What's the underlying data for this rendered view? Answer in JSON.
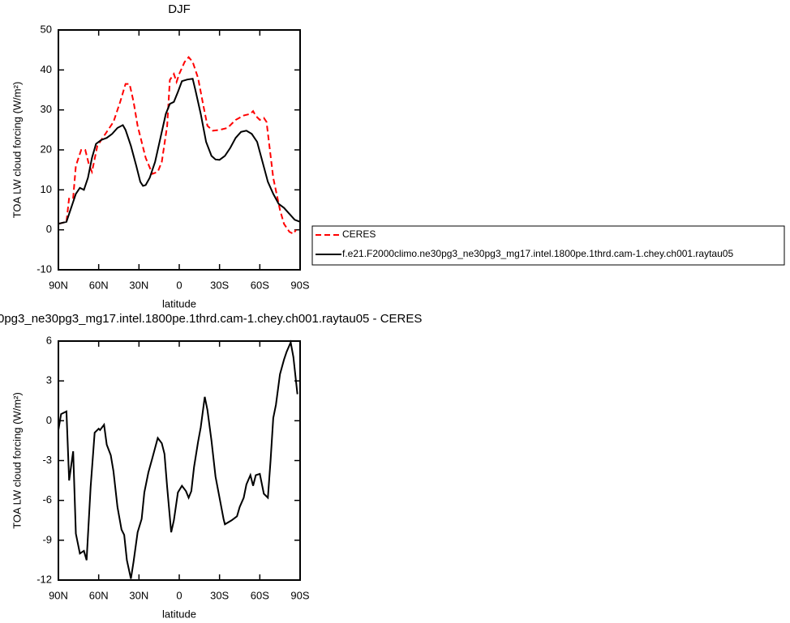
{
  "chart_data": [
    {
      "type": "line",
      "title": "DJF",
      "xlabel": "latitude",
      "ylabel": "TOA LW cloud forcing (W/m²)",
      "xlim": [
        90,
        -90
      ],
      "ylim": [
        -10,
        50
      ],
      "xticks": [
        {
          "value": 90,
          "label": "90N"
        },
        {
          "value": 60,
          "label": "60N"
        },
        {
          "value": 30,
          "label": "30N"
        },
        0,
        {
          "value": -30,
          "label": "30S"
        },
        {
          "value": -60,
          "label": "60S"
        },
        {
          "value": -90,
          "label": "90S"
        }
      ],
      "yticks": [
        -10,
        0,
        10,
        20,
        30,
        40,
        50
      ],
      "legend": "right",
      "series": [
        {
          "name": "CERES",
          "color": "#ff0000",
          "dashed": true,
          "x": [
            90,
            84,
            82,
            79,
            77,
            73,
            70,
            67,
            65,
            61,
            55,
            49,
            44,
            40,
            37,
            34,
            31,
            25,
            20,
            16,
            13,
            9,
            7,
            4,
            2,
            0,
            -4,
            -7,
            -10,
            -14,
            -18,
            -21,
            -25,
            -30,
            -36,
            -42,
            -48,
            -53,
            -55,
            -57,
            -60,
            -63,
            -65,
            -70,
            -75,
            -78,
            -82,
            -85,
            -87
          ],
          "values": [
            1.5,
            2,
            8,
            8,
            16,
            20,
            20,
            16,
            14.5,
            21,
            24,
            27,
            32,
            36.5,
            36.5,
            32,
            26,
            18,
            14,
            14.5,
            17,
            26,
            37.5,
            39,
            37,
            39,
            42,
            43.2,
            42,
            38,
            31,
            26,
            24.8,
            25,
            25.5,
            27.5,
            28.6,
            29,
            29.7,
            28.5,
            27.5,
            28,
            27,
            13,
            5,
            1.5,
            -0.5,
            -1,
            0
          ]
        },
        {
          "name": "f.e21.F2000climo.ne30pg3_ne30pg3_mg17.intel.1800pe.1thrd.cam-1.chey.ch001.raytau05",
          "color": "#000000",
          "dashed": false,
          "x": [
            90,
            84,
            81,
            77,
            74,
            71,
            68,
            65,
            62,
            58,
            54,
            50,
            46,
            42,
            40,
            36,
            32,
            29,
            27,
            25,
            22,
            18,
            14,
            10,
            7,
            4,
            1,
            -2,
            -6,
            -10,
            -12,
            -16,
            -20,
            -24,
            -27,
            -30,
            -34,
            -38,
            -42,
            -46,
            -50,
            -54,
            -58,
            -62,
            -66,
            -70,
            -74,
            -78,
            -82,
            -86,
            -90
          ],
          "values": [
            1.5,
            2,
            5,
            9,
            10.5,
            10,
            13,
            18,
            21.5,
            22.5,
            23,
            24,
            25.5,
            26.2,
            25,
            21,
            16,
            12,
            11,
            11.2,
            13,
            17,
            23,
            29,
            31.5,
            32,
            34.5,
            37.2,
            37.6,
            37.8,
            35,
            29,
            22,
            18.5,
            17.6,
            17.5,
            18.5,
            20.5,
            23,
            24.5,
            24.8,
            24,
            22,
            17,
            12,
            9,
            6.5,
            5.5,
            4,
            2.5,
            2
          ]
        }
      ]
    },
    {
      "type": "line",
      "title": "0pg3_ne30pg3_mg17.intel.1800pe.1thrd.cam-1.chey.ch001.raytau05 - CERES",
      "xlabel": "latitude",
      "ylabel": "TOA LW cloud forcing (W/m²)",
      "xlim": [
        90,
        -90
      ],
      "ylim": [
        -12,
        6
      ],
      "xticks": [
        {
          "value": 90,
          "label": "90N"
        },
        {
          "value": 60,
          "label": "60N"
        },
        {
          "value": 30,
          "label": "30N"
        },
        0,
        {
          "value": -30,
          "label": "30S"
        },
        {
          "value": -60,
          "label": "60S"
        },
        {
          "value": -90,
          "label": "90S"
        }
      ],
      "yticks": [
        -12,
        -9,
        -6,
        -3,
        0,
        3,
        6
      ],
      "color": "#000000",
      "x": [
        90,
        88,
        84,
        82,
        79,
        77,
        74,
        71,
        69,
        66,
        63,
        60,
        59,
        56,
        54,
        51,
        49,
        46,
        43,
        41,
        39,
        36,
        34,
        31,
        28,
        26,
        23,
        20,
        16,
        13,
        11,
        9,
        6,
        4,
        1,
        -2,
        -5,
        -7,
        -9,
        -11,
        -14,
        -16,
        -19,
        -21,
        -24,
        -27,
        -30,
        -33,
        -34,
        -39,
        -43,
        -45,
        -48,
        -50,
        -53,
        -55,
        -57,
        -60,
        -63,
        -66,
        -68,
        -70,
        -72,
        -75,
        -78,
        -80,
        -83,
        -85,
        -88
      ],
      "values": [
        -0.7,
        0.5,
        0.7,
        -4.5,
        -2.3,
        -8.5,
        -10,
        -9.8,
        -10.5,
        -5,
        -0.9,
        -0.6,
        -0.7,
        -0.3,
        -1.8,
        -2.6,
        -3.8,
        -6.5,
        -8.2,
        -8.6,
        -10.5,
        -11.9,
        -10.6,
        -8.4,
        -7.4,
        -5.4,
        -3.9,
        -2.8,
        -1.3,
        -1.7,
        -2.5,
        -5,
        -8.4,
        -7.5,
        -5.4,
        -4.9,
        -5.3,
        -5.8,
        -5.3,
        -3.5,
        -1.6,
        -0.5,
        1.8,
        0.8,
        -1.5,
        -4.2,
        -5.8,
        -7.4,
        -7.8,
        -7.5,
        -7.2,
        -6.5,
        -5.8,
        -4.8,
        -4.1,
        -4.9,
        -4.1,
        -4,
        -5.5,
        -5.8,
        -3,
        0.2,
        1.2,
        3.5,
        4.6,
        5.2,
        5.9,
        4.8,
        2
      ]
    }
  ]
}
